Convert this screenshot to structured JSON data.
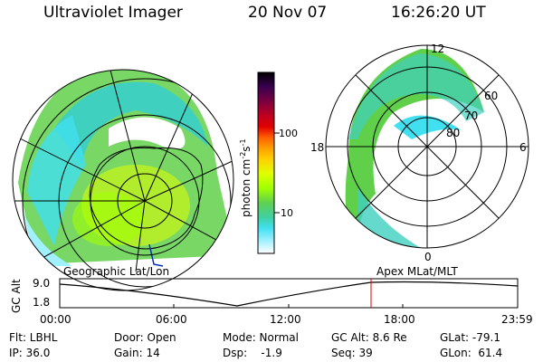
{
  "header": {
    "instrument": "Ultraviolet Imager",
    "date": "20 Nov 07",
    "time": "16:26:20 UT"
  },
  "colorbar": {
    "label": "photon cm",
    "label_exp": "-2",
    "label_unit": "s",
    "label_unit_exp": "-1",
    "ticks": [
      "100",
      "10"
    ],
    "colors": [
      "#000000",
      "#3a0050",
      "#7a0040",
      "#b00030",
      "#e00000",
      "#ff6000",
      "#ffa000",
      "#ffd000",
      "#e0ff00",
      "#a0ff00",
      "#70e040",
      "#50d070",
      "#40d0c0",
      "#40e0f0",
      "#a0f0ff",
      "#ffffff"
    ]
  },
  "left_map": {
    "caption": "Geographic Lat/Lon"
  },
  "right_map": {
    "caption": "Apex  MLat/MLT",
    "mlt_labels": {
      "top": "12",
      "left": "18",
      "right": "6",
      "bottom": "0"
    },
    "lat_labels": [
      "60",
      "70",
      "80"
    ]
  },
  "altitude_plot": {
    "ylabel": "GC Alt",
    "y_ticks": [
      "9.0",
      "1.8"
    ],
    "x_ticks": [
      "00:00",
      "06:00",
      "12:00",
      "18:00",
      "23:59"
    ],
    "marker_color": "#e00000"
  },
  "status": {
    "flt": "Flt: LBHL",
    "ip": "IP: 36.0",
    "door": "Door: Open",
    "gain": "Gain: 14",
    "mode": "Mode: Normal",
    "dsp": "Dsp:    -1.9",
    "gc_alt": "GC Alt: 8.6 Re",
    "seq": "Seq: 39",
    "glat": "GLat: -79.1",
    "glon": "GLon:  61.4"
  }
}
